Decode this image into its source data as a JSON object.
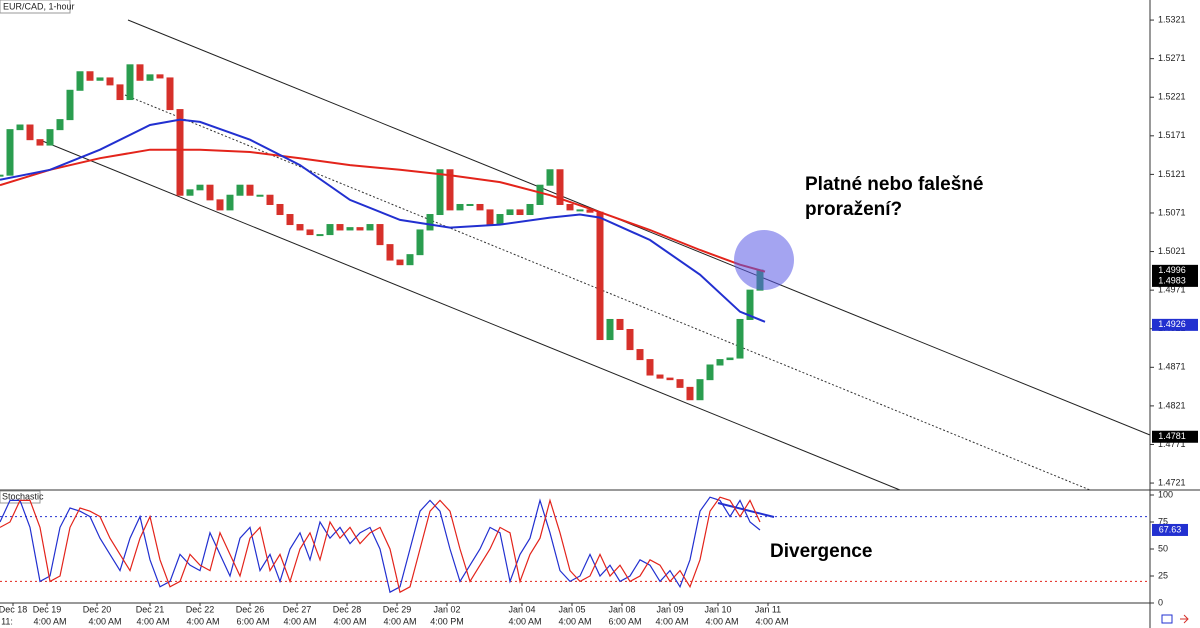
{
  "chart_data": [
    {
      "type": "candlestick",
      "title": "EUR/CAD, 1-hour",
      "xlim": [
        0,
        115
      ],
      "ylim": [
        1.4712,
        1.5347
      ],
      "yticks": [
        1.5321,
        1.5271,
        1.5221,
        1.5171,
        1.5121,
        1.5071,
        1.5021,
        1.4971,
        1.4921,
        1.4871,
        1.4821,
        1.4771,
        1.4721
      ],
      "x": [
        0,
        1,
        2,
        3,
        4,
        5,
        6,
        7,
        8,
        9,
        10,
        11,
        12,
        13,
        14,
        15,
        16,
        17,
        18,
        19,
        20,
        21,
        22,
        23,
        24,
        25,
        26,
        27,
        28,
        29,
        30,
        31,
        32,
        33,
        34,
        35,
        36,
        37,
        38,
        39,
        40,
        41,
        42,
        43,
        44,
        45,
        46,
        47,
        48,
        49,
        50,
        51,
        52,
        53,
        54,
        55,
        56,
        57,
        58,
        59,
        60,
        61,
        62,
        63,
        64,
        65,
        66,
        67,
        68,
        69,
        70,
        71,
        72,
        73,
        74,
        75,
        76
      ],
      "values": [
        1.512,
        1.5179,
        1.5185,
        1.5166,
        1.5159,
        1.5179,
        1.5192,
        1.523,
        1.5254,
        1.5243,
        1.5246,
        1.5237,
        1.5218,
        1.5263,
        1.5243,
        1.525,
        1.5246,
        1.5205,
        1.5094,
        1.5101,
        1.5107,
        1.5088,
        1.5075,
        1.5094,
        1.5107,
        1.5094,
        1.5094,
        1.5082,
        1.5069,
        1.5056,
        1.5049,
        1.5043,
        1.5043,
        1.5056,
        1.5049,
        1.5052,
        1.5049,
        1.5056,
        1.503,
        1.501,
        1.5004,
        1.5017,
        1.5049,
        1.5069,
        1.5127,
        1.5075,
        1.5082,
        1.5082,
        1.5075,
        1.5056,
        1.5069,
        1.5075,
        1.5069,
        1.5082,
        1.5107,
        1.5127,
        1.5082,
        1.5075,
        1.5075,
        1.5072,
        1.4907,
        1.4933,
        1.492,
        1.4894,
        1.4881,
        1.4861,
        1.4857,
        1.4855,
        1.4845,
        1.4829,
        1.4855,
        1.4874,
        1.4881,
        1.4883,
        1.4933,
        1.4971,
        1.4997
      ],
      "up_color": "#2a9d4f",
      "down_color": "#d6302a",
      "moving_averages": [
        {
          "color": "#e3241b",
          "x": [
            0,
            5,
            10,
            15,
            20,
            25,
            30,
            35,
            40,
            45,
            50,
            55,
            60,
            65,
            70,
            74,
            76.5
          ],
          "values": [
            1.5107,
            1.5127,
            1.5142,
            1.5153,
            1.5153,
            1.515,
            1.5142,
            1.5133,
            1.5127,
            1.512,
            1.5111,
            1.5094,
            1.5072,
            1.5049,
            1.5023,
            1.5004,
            1.4995
          ]
        },
        {
          "color": "#2230d0",
          "x": [
            0,
            5,
            10,
            15,
            18,
            20,
            25,
            30,
            35,
            40,
            45,
            50,
            55,
            58,
            60,
            65,
            70,
            74,
            76.5
          ],
          "values": [
            1.5114,
            1.5127,
            1.5153,
            1.5185,
            1.5192,
            1.5189,
            1.5166,
            1.5133,
            1.5088,
            1.5062,
            1.5052,
            1.5056,
            1.5065,
            1.5069,
            1.5065,
            1.5036,
            1.4991,
            1.4943,
            1.493
          ]
        }
      ],
      "price_markers": [
        {
          "value": 1.4996,
          "color": "#000000"
        },
        {
          "value": 1.4983,
          "color": "#000000"
        },
        {
          "value": 1.4926,
          "color": "#2230d0"
        },
        {
          "value": 1.4781,
          "color": "#000000"
        }
      ],
      "annotation": [
        "Platné nebo falešné",
        "proražení?"
      ],
      "date_ticks": [
        {
          "value": 1.3,
          "label": "Dec 18"
        },
        {
          "value": 4.7,
          "label": "Dec 19"
        },
        {
          "value": 9.7,
          "label": "Dec 20"
        },
        {
          "value": 15,
          "label": "Dec 21"
        },
        {
          "value": 20,
          "label": "Dec 22"
        },
        {
          "value": 25,
          "label": "Dec 26"
        },
        {
          "value": 29.7,
          "label": "Dec 27"
        },
        {
          "value": 34.7,
          "label": "Dec 28"
        },
        {
          "value": 39.7,
          "label": "Dec 29"
        },
        {
          "value": 44.7,
          "label": "Jan 02"
        },
        {
          "value": 52.2,
          "label": "Jan 04"
        },
        {
          "value": 57.2,
          "label": "Jan 05"
        },
        {
          "value": 62.2,
          "label": "Jan 08"
        },
        {
          "value": 67,
          "label": "Jan 09"
        },
        {
          "value": 71.8,
          "label": "Jan 10"
        },
        {
          "value": 76.8,
          "label": "Jan 11"
        }
      ],
      "time_ticks": [
        {
          "value": 0.7,
          "label": "11:"
        },
        {
          "value": 5,
          "label": "4:00 AM"
        },
        {
          "value": 10.5,
          "label": "4:00 AM"
        },
        {
          "value": 15.3,
          "label": "4:00 AM"
        },
        {
          "value": 20.3,
          "label": "4:00 AM"
        },
        {
          "value": 25.3,
          "label": "6:00 AM"
        },
        {
          "value": 30,
          "label": "4:00 AM"
        },
        {
          "value": 35,
          "label": "4:00 AM"
        },
        {
          "value": 40,
          "label": "4:00 AM"
        },
        {
          "value": 44.7,
          "label": "4:00 PM"
        },
        {
          "value": 52.5,
          "label": "4:00 AM"
        },
        {
          "value": 57.5,
          "label": "4:00 AM"
        },
        {
          "value": 62.5,
          "label": "6:00 AM"
        },
        {
          "value": 67.2,
          "label": "4:00 AM"
        },
        {
          "value": 72.2,
          "label": "4:00 AM"
        },
        {
          "value": 77.2,
          "label": "4:00 AM"
        }
      ]
    },
    {
      "type": "line",
      "title": "Stochastic",
      "xlim": [
        0,
        115
      ],
      "ylim": [
        0,
        100
      ],
      "yticks": [
        100,
        75,
        50,
        25,
        0
      ],
      "x": [
        0,
        1,
        2,
        3,
        4,
        5,
        6,
        7,
        8,
        9,
        10,
        11,
        12,
        13,
        14,
        15,
        16,
        17,
        18,
        19,
        20,
        21,
        22,
        23,
        24,
        25,
        26,
        27,
        28,
        29,
        30,
        31,
        32,
        33,
        34,
        35,
        36,
        37,
        38,
        39,
        40,
        41,
        42,
        43,
        44,
        45,
        46,
        47,
        48,
        49,
        50,
        51,
        52,
        53,
        54,
        55,
        56,
        57,
        58,
        59,
        60,
        61,
        62,
        63,
        64,
        65,
        66,
        67,
        68,
        69,
        70,
        71,
        72,
        73,
        74,
        75,
        76
      ],
      "series": [
        {
          "color": "#2230d0",
          "values": [
            75,
            95,
            95,
            70,
            20,
            25,
            70,
            88,
            85,
            80,
            60,
            45,
            30,
            60,
            80,
            40,
            15,
            20,
            45,
            35,
            30,
            65,
            45,
            25,
            60,
            70,
            30,
            45,
            20,
            50,
            65,
            40,
            75,
            60,
            70,
            55,
            65,
            70,
            50,
            10,
            15,
            50,
            85,
            95,
            85,
            50,
            20,
            35,
            50,
            70,
            65,
            20,
            45,
            60,
            95,
            65,
            30,
            20,
            25,
            45,
            25,
            35,
            20,
            25,
            40,
            35,
            20,
            30,
            15,
            40,
            85,
            98,
            95,
            80,
            95,
            75,
            67.63
          ]
        },
        {
          "color": "#e3241b",
          "values": [
            70,
            75,
            95,
            95,
            70,
            20,
            25,
            70,
            88,
            85,
            80,
            60,
            45,
            30,
            60,
            80,
            40,
            15,
            20,
            45,
            35,
            30,
            65,
            45,
            25,
            60,
            70,
            30,
            45,
            20,
            50,
            65,
            40,
            75,
            60,
            70,
            55,
            65,
            70,
            50,
            10,
            15,
            50,
            85,
            95,
            85,
            50,
            20,
            35,
            50,
            70,
            65,
            20,
            45,
            60,
            95,
            65,
            30,
            20,
            25,
            45,
            25,
            35,
            20,
            25,
            40,
            35,
            20,
            30,
            15,
            40,
            85,
            98,
            95,
            80,
            95,
            75
          ]
        }
      ],
      "levels": [
        {
          "value": 80,
          "color": "#2230d0"
        },
        {
          "value": 20,
          "color": "#e3241b"
        }
      ],
      "last_value": 67.63,
      "annotation": "Divergence"
    }
  ]
}
